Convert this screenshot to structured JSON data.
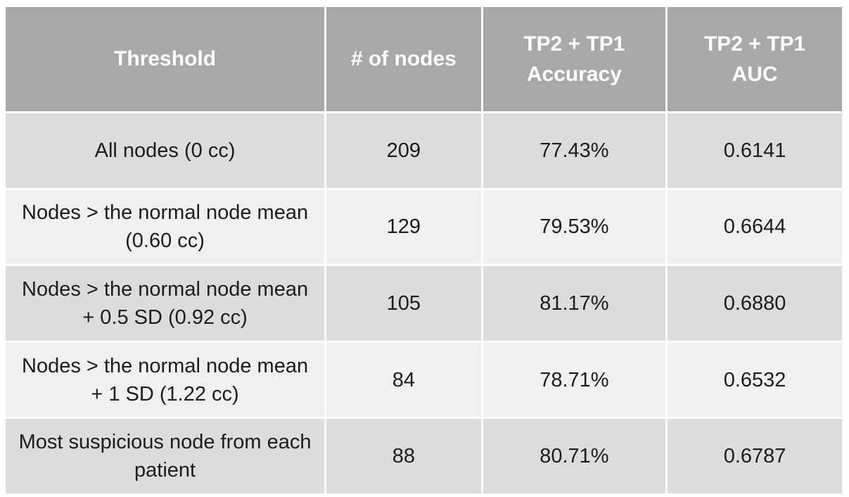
{
  "colors": {
    "header_bg": "#a8a8a8",
    "header_text": "#ffffff",
    "band_dark": "#dcdcdc",
    "band_light": "#f0f0f0",
    "body_text": "#1c1c1c",
    "gap": "#ffffff"
  },
  "table": {
    "columns": [
      "Threshold",
      "# of nodes",
      "TP2 + TP1 Accuracy",
      "TP2 + TP1 AUC"
    ],
    "rows": [
      [
        "All nodes (0 cc)",
        "209",
        "77.43%",
        "0.6141"
      ],
      [
        "Nodes > the normal node mean (0.60 cc)",
        "129",
        "79.53%",
        "0.6644"
      ],
      [
        "Nodes > the normal node mean + 0.5 SD (0.92 cc)",
        "105",
        "81.17%",
        "0.6880"
      ],
      [
        "Nodes > the normal node mean + 1 SD  (1.22 cc)",
        "84",
        "78.71%",
        "0.6532"
      ],
      [
        "Most suspicious node from each patient",
        "88",
        "80.71%",
        "0.6787"
      ]
    ]
  },
  "chart_data": {
    "type": "table",
    "title": "",
    "columns": [
      "Threshold",
      "# of nodes",
      "TP2 + TP1 Accuracy",
      "TP2 + TP1 AUC"
    ],
    "rows": [
      {
        "threshold": "All nodes (0 cc)",
        "num_nodes": 209,
        "tp2_tp1_accuracy_pct": 77.43,
        "tp2_tp1_auc": 0.6141
      },
      {
        "threshold": "Nodes > the normal node mean (0.60 cc)",
        "num_nodes": 129,
        "tp2_tp1_accuracy_pct": 79.53,
        "tp2_tp1_auc": 0.6644
      },
      {
        "threshold": "Nodes > the normal node mean + 0.5 SD (0.92 cc)",
        "num_nodes": 105,
        "tp2_tp1_accuracy_pct": 81.17,
        "tp2_tp1_auc": 0.688
      },
      {
        "threshold": "Nodes > the normal node mean + 1 SD (1.22 cc)",
        "num_nodes": 84,
        "tp2_tp1_accuracy_pct": 78.71,
        "tp2_tp1_auc": 0.6532
      },
      {
        "threshold": "Most suspicious node from each patient",
        "num_nodes": 88,
        "tp2_tp1_accuracy_pct": 80.71,
        "tp2_tp1_auc": 0.6787
      }
    ],
    "layout": {
      "header_style": "gray-filled",
      "row_banding": [
        "dark",
        "light",
        "dark",
        "light",
        "dark"
      ],
      "grid": "white-gaps"
    }
  }
}
